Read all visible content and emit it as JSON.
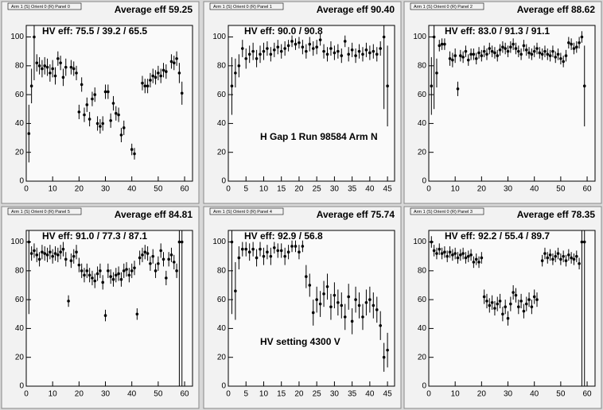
{
  "chart_data": [
    {
      "type": "scatter",
      "title": "Arm 1 (S) Orient 0 (R) Panel 0",
      "average": "Average eff 59.25",
      "hv_eff": "HV eff:   75.5 / 39.2 / 65.5",
      "x": [
        1,
        2,
        3,
        4,
        5,
        6,
        7,
        8,
        9,
        10,
        11,
        12,
        13,
        14,
        15,
        17,
        18,
        19,
        20,
        21,
        22,
        23,
        24,
        25,
        26,
        27,
        28,
        29,
        30,
        31,
        32,
        33,
        34,
        35,
        36,
        37,
        40,
        41,
        44,
        45,
        46,
        47,
        48,
        49,
        50,
        51,
        52,
        53,
        55,
        56,
        57,
        58,
        59
      ],
      "values": [
        33,
        66,
        100,
        82,
        80,
        78,
        80,
        79,
        75,
        78,
        73,
        85,
        82,
        72,
        79,
        79,
        78,
        75,
        48,
        67,
        46,
        53,
        43,
        57,
        60,
        40,
        38,
        40,
        62,
        62,
        42,
        54,
        47,
        46,
        32,
        37,
        22,
        19,
        68,
        66,
        66,
        70,
        73,
        72,
        75,
        73,
        77,
        76,
        83,
        82,
        85,
        75,
        61
      ],
      "errors": [
        20,
        12,
        30,
        6,
        6,
        6,
        6,
        6,
        6,
        6,
        6,
        5,
        5,
        6,
        6,
        5,
        5,
        5,
        5,
        5,
        5,
        5,
        5,
        5,
        5,
        5,
        5,
        5,
        5,
        5,
        5,
        5,
        5,
        5,
        5,
        5,
        4,
        4,
        5,
        5,
        5,
        5,
        5,
        5,
        5,
        5,
        5,
        5,
        5,
        5,
        5,
        7,
        8
      ],
      "color": "#000000",
      "xlim": [
        0,
        63
      ],
      "ylim": [
        0,
        108
      ],
      "xticks": [
        0,
        10,
        20,
        30,
        40,
        50,
        60
      ],
      "yticks": [
        0,
        20,
        40,
        60,
        80,
        100
      ]
    },
    {
      "type": "scatter",
      "title": "Arm 1 (S) Orient 0 (R) Panel 1",
      "average": "Average eff 90.40",
      "hv_eff": "HV eff:   90.0 / 90.8",
      "note": "H Gap 1 Run 98584 Arm N",
      "x": [
        1,
        2,
        3,
        4,
        5,
        6,
        7,
        8,
        9,
        10,
        11,
        12,
        13,
        14,
        15,
        16,
        17,
        18,
        19,
        20,
        21,
        22,
        23,
        24,
        25,
        26,
        27,
        28,
        29,
        30,
        31,
        32,
        33,
        34,
        35,
        36,
        37,
        38,
        39,
        40,
        41,
        42,
        43,
        44,
        45
      ],
      "values": [
        66,
        75,
        80,
        92,
        85,
        88,
        90,
        85,
        88,
        90,
        92,
        88,
        91,
        93,
        90,
        92,
        94,
        97,
        95,
        96,
        93,
        90,
        95,
        92,
        93,
        98,
        90,
        88,
        92,
        89,
        90,
        87,
        97,
        88,
        91,
        87,
        90,
        88,
        91,
        89,
        90,
        88,
        92,
        100,
        66
      ],
      "errors": [
        20,
        10,
        8,
        6,
        7,
        6,
        6,
        6,
        6,
        6,
        5,
        5,
        5,
        5,
        5,
        5,
        4,
        4,
        4,
        4,
        5,
        5,
        5,
        5,
        5,
        4,
        5,
        5,
        5,
        5,
        5,
        5,
        4,
        5,
        5,
        5,
        5,
        5,
        5,
        5,
        5,
        5,
        5,
        50,
        28
      ],
      "color": "#000000",
      "xlim": [
        0,
        47
      ],
      "ylim": [
        0,
        108
      ],
      "xticks": [
        0,
        5,
        10,
        15,
        20,
        25,
        30,
        35,
        40,
        45
      ],
      "yticks": [
        0,
        20,
        40,
        60,
        80,
        100
      ]
    },
    {
      "type": "scatter",
      "title": "Arm 1 (S) Orient 0 (R) Panel 2",
      "average": "Average eff 88.62",
      "hv_eff": "HV eff:   83.0 / 91.3 / 91.1",
      "x": [
        1,
        2,
        3,
        4,
        5,
        6,
        8,
        9,
        10,
        11,
        12,
        13,
        14,
        15,
        16,
        17,
        18,
        19,
        20,
        21,
        22,
        23,
        24,
        25,
        26,
        27,
        28,
        29,
        30,
        31,
        32,
        33,
        34,
        35,
        36,
        37,
        38,
        39,
        40,
        41,
        42,
        43,
        44,
        45,
        46,
        47,
        48,
        49,
        50,
        51,
        52,
        53,
        54,
        55,
        56,
        57,
        58,
        59
      ],
      "values": [
        66,
        100,
        75,
        94,
        95,
        95,
        85,
        84,
        87,
        64,
        87,
        86,
        90,
        84,
        88,
        88,
        85,
        89,
        87,
        90,
        88,
        92,
        90,
        89,
        87,
        91,
        93,
        92,
        90,
        93,
        95,
        92,
        90,
        88,
        94,
        91,
        89,
        88,
        90,
        92,
        89,
        88,
        90,
        88,
        87,
        90,
        86,
        88,
        85,
        83,
        87,
        96,
        95,
        92,
        93,
        96,
        100,
        66
      ],
      "errors": [
        20,
        50,
        10,
        4,
        4,
        4,
        5,
        5,
        5,
        5,
        4,
        4,
        4,
        4,
        4,
        4,
        4,
        4,
        4,
        4,
        4,
        4,
        4,
        4,
        4,
        4,
        4,
        4,
        4,
        4,
        4,
        4,
        4,
        4,
        4,
        4,
        4,
        4,
        4,
        4,
        4,
        4,
        4,
        4,
        4,
        4,
        4,
        4,
        4,
        4,
        4,
        4,
        4,
        4,
        4,
        4,
        4,
        28
      ],
      "color": "#000000",
      "xlim": [
        0,
        63
      ],
      "ylim": [
        0,
        108
      ],
      "xticks": [
        0,
        10,
        20,
        30,
        40,
        50,
        60
      ],
      "yticks": [
        0,
        20,
        40,
        60,
        80,
        100
      ]
    },
    {
      "type": "scatter",
      "title": "Arm 1 (S) Orient 0 (R) Panel 5",
      "average": "Average eff 84.81",
      "hv_eff": "HV eff:   91.0 / 77.3 / 87.1",
      "x": [
        1,
        2,
        3,
        4,
        5,
        6,
        7,
        8,
        9,
        10,
        11,
        12,
        13,
        14,
        15,
        16,
        17,
        18,
        19,
        20,
        21,
        22,
        23,
        24,
        25,
        26,
        27,
        28,
        29,
        30,
        31,
        32,
        33,
        34,
        35,
        36,
        37,
        38,
        39,
        40,
        41,
        42,
        43,
        44,
        45,
        46,
        47,
        48,
        49,
        50,
        51,
        52,
        53,
        54,
        55,
        56,
        57,
        58,
        59
      ],
      "values": [
        100,
        92,
        94,
        91,
        88,
        93,
        92,
        91,
        93,
        90,
        92,
        91,
        93,
        95,
        88,
        59,
        87,
        90,
        93,
        84,
        80,
        77,
        80,
        77,
        75,
        73,
        78,
        80,
        72,
        49,
        80,
        76,
        74,
        77,
        78,
        74,
        80,
        81,
        77,
        80,
        82,
        50,
        89,
        91,
        93,
        92,
        85,
        90,
        80,
        85,
        94,
        88,
        75,
        88,
        91,
        86,
        80,
        100,
        100
      ],
      "errors": [
        50,
        5,
        5,
        5,
        5,
        5,
        5,
        5,
        5,
        5,
        5,
        5,
        5,
        5,
        5,
        4,
        5,
        5,
        5,
        5,
        5,
        5,
        5,
        5,
        5,
        5,
        5,
        5,
        5,
        4,
        5,
        5,
        5,
        5,
        5,
        5,
        5,
        5,
        5,
        5,
        5,
        4,
        5,
        5,
        5,
        5,
        5,
        5,
        5,
        5,
        5,
        5,
        5,
        5,
        5,
        5,
        5,
        100,
        100
      ],
      "color": "#000000",
      "xlim": [
        0,
        63
      ],
      "ylim": [
        0,
        108
      ],
      "xticks": [
        0,
        10,
        20,
        30,
        40,
        50,
        60
      ],
      "yticks": [
        0,
        20,
        40,
        60,
        80,
        100
      ]
    },
    {
      "type": "scatter",
      "title": "Arm 1 (S) Orient 0 (R) Panel 4",
      "average": "Average eff 75.74",
      "hv_eff": "HV eff:   92.9 / 56.8",
      "note": "HV setting 4300 V",
      "x": [
        1,
        2,
        3,
        4,
        5,
        6,
        7,
        8,
        9,
        10,
        11,
        12,
        13,
        14,
        15,
        16,
        17,
        18,
        19,
        20,
        21,
        22,
        23,
        24,
        25,
        26,
        27,
        28,
        29,
        30,
        31,
        32,
        33,
        34,
        35,
        36,
        37,
        38,
        39,
        40,
        41,
        42,
        43,
        44,
        45
      ],
      "values": [
        100,
        66,
        89,
        95,
        95,
        93,
        95,
        89,
        95,
        90,
        93,
        90,
        96,
        94,
        94,
        90,
        93,
        97,
        97,
        93,
        97,
        76,
        70,
        51,
        60,
        57,
        64,
        69,
        55,
        63,
        58,
        56,
        48,
        62,
        45,
        60,
        56,
        48,
        58,
        60,
        56,
        53,
        42,
        20,
        25
      ],
      "errors": [
        50,
        20,
        8,
        5,
        5,
        6,
        5,
        6,
        5,
        6,
        5,
        6,
        4,
        5,
        5,
        6,
        5,
        4,
        4,
        5,
        4,
        8,
        8,
        9,
        9,
        9,
        9,
        9,
        9,
        9,
        9,
        9,
        9,
        9,
        9,
        9,
        9,
        9,
        9,
        9,
        9,
        9,
        10,
        10,
        12
      ],
      "color": "#000000",
      "xlim": [
        0,
        47
      ],
      "ylim": [
        0,
        108
      ],
      "xticks": [
        0,
        5,
        10,
        15,
        20,
        25,
        30,
        35,
        40,
        45
      ],
      "yticks": [
        0,
        20,
        40,
        60,
        80,
        100
      ]
    },
    {
      "type": "scatter",
      "title": "Arm 1 (S) Orient 0 (R) Panel 3",
      "average": "Average eff 78.35",
      "hv_eff": "HV eff:   92.2 / 55.4 / 89.7",
      "x": [
        1,
        2,
        3,
        4,
        5,
        6,
        7,
        8,
        9,
        10,
        11,
        12,
        13,
        14,
        15,
        16,
        17,
        18,
        19,
        20,
        21,
        22,
        23,
        24,
        25,
        26,
        27,
        28,
        29,
        30,
        31,
        32,
        33,
        34,
        35,
        36,
        37,
        38,
        39,
        40,
        41,
        43,
        44,
        45,
        46,
        47,
        48,
        49,
        50,
        51,
        52,
        53,
        54,
        55,
        56,
        57,
        58,
        59
      ],
      "values": [
        100,
        94,
        92,
        95,
        92,
        93,
        90,
        93,
        91,
        92,
        89,
        91,
        92,
        89,
        90,
        91,
        86,
        88,
        86,
        89,
        62,
        59,
        56,
        58,
        54,
        57,
        59,
        50,
        55,
        47,
        57,
        65,
        63,
        55,
        59,
        52,
        57,
        60,
        55,
        62,
        60,
        87,
        92,
        89,
        91,
        88,
        90,
        92,
        88,
        90,
        87,
        91,
        89,
        88,
        90,
        85,
        100,
        100
      ],
      "errors": [
        4,
        4,
        4,
        4,
        4,
        4,
        4,
        4,
        4,
        4,
        4,
        4,
        4,
        4,
        4,
        4,
        4,
        4,
        4,
        4,
        5,
        5,
        5,
        5,
        5,
        5,
        5,
        5,
        5,
        5,
        5,
        5,
        5,
        5,
        5,
        5,
        5,
        5,
        5,
        5,
        5,
        4,
        4,
        4,
        4,
        4,
        4,
        4,
        4,
        4,
        4,
        4,
        4,
        4,
        4,
        4,
        100,
        100
      ],
      "color": "#000000",
      "xlim": [
        0,
        63
      ],
      "ylim": [
        0,
        108
      ],
      "xticks": [
        0,
        10,
        20,
        30,
        40,
        50,
        60
      ],
      "yticks": [
        0,
        20,
        40,
        60,
        80,
        100
      ]
    }
  ]
}
